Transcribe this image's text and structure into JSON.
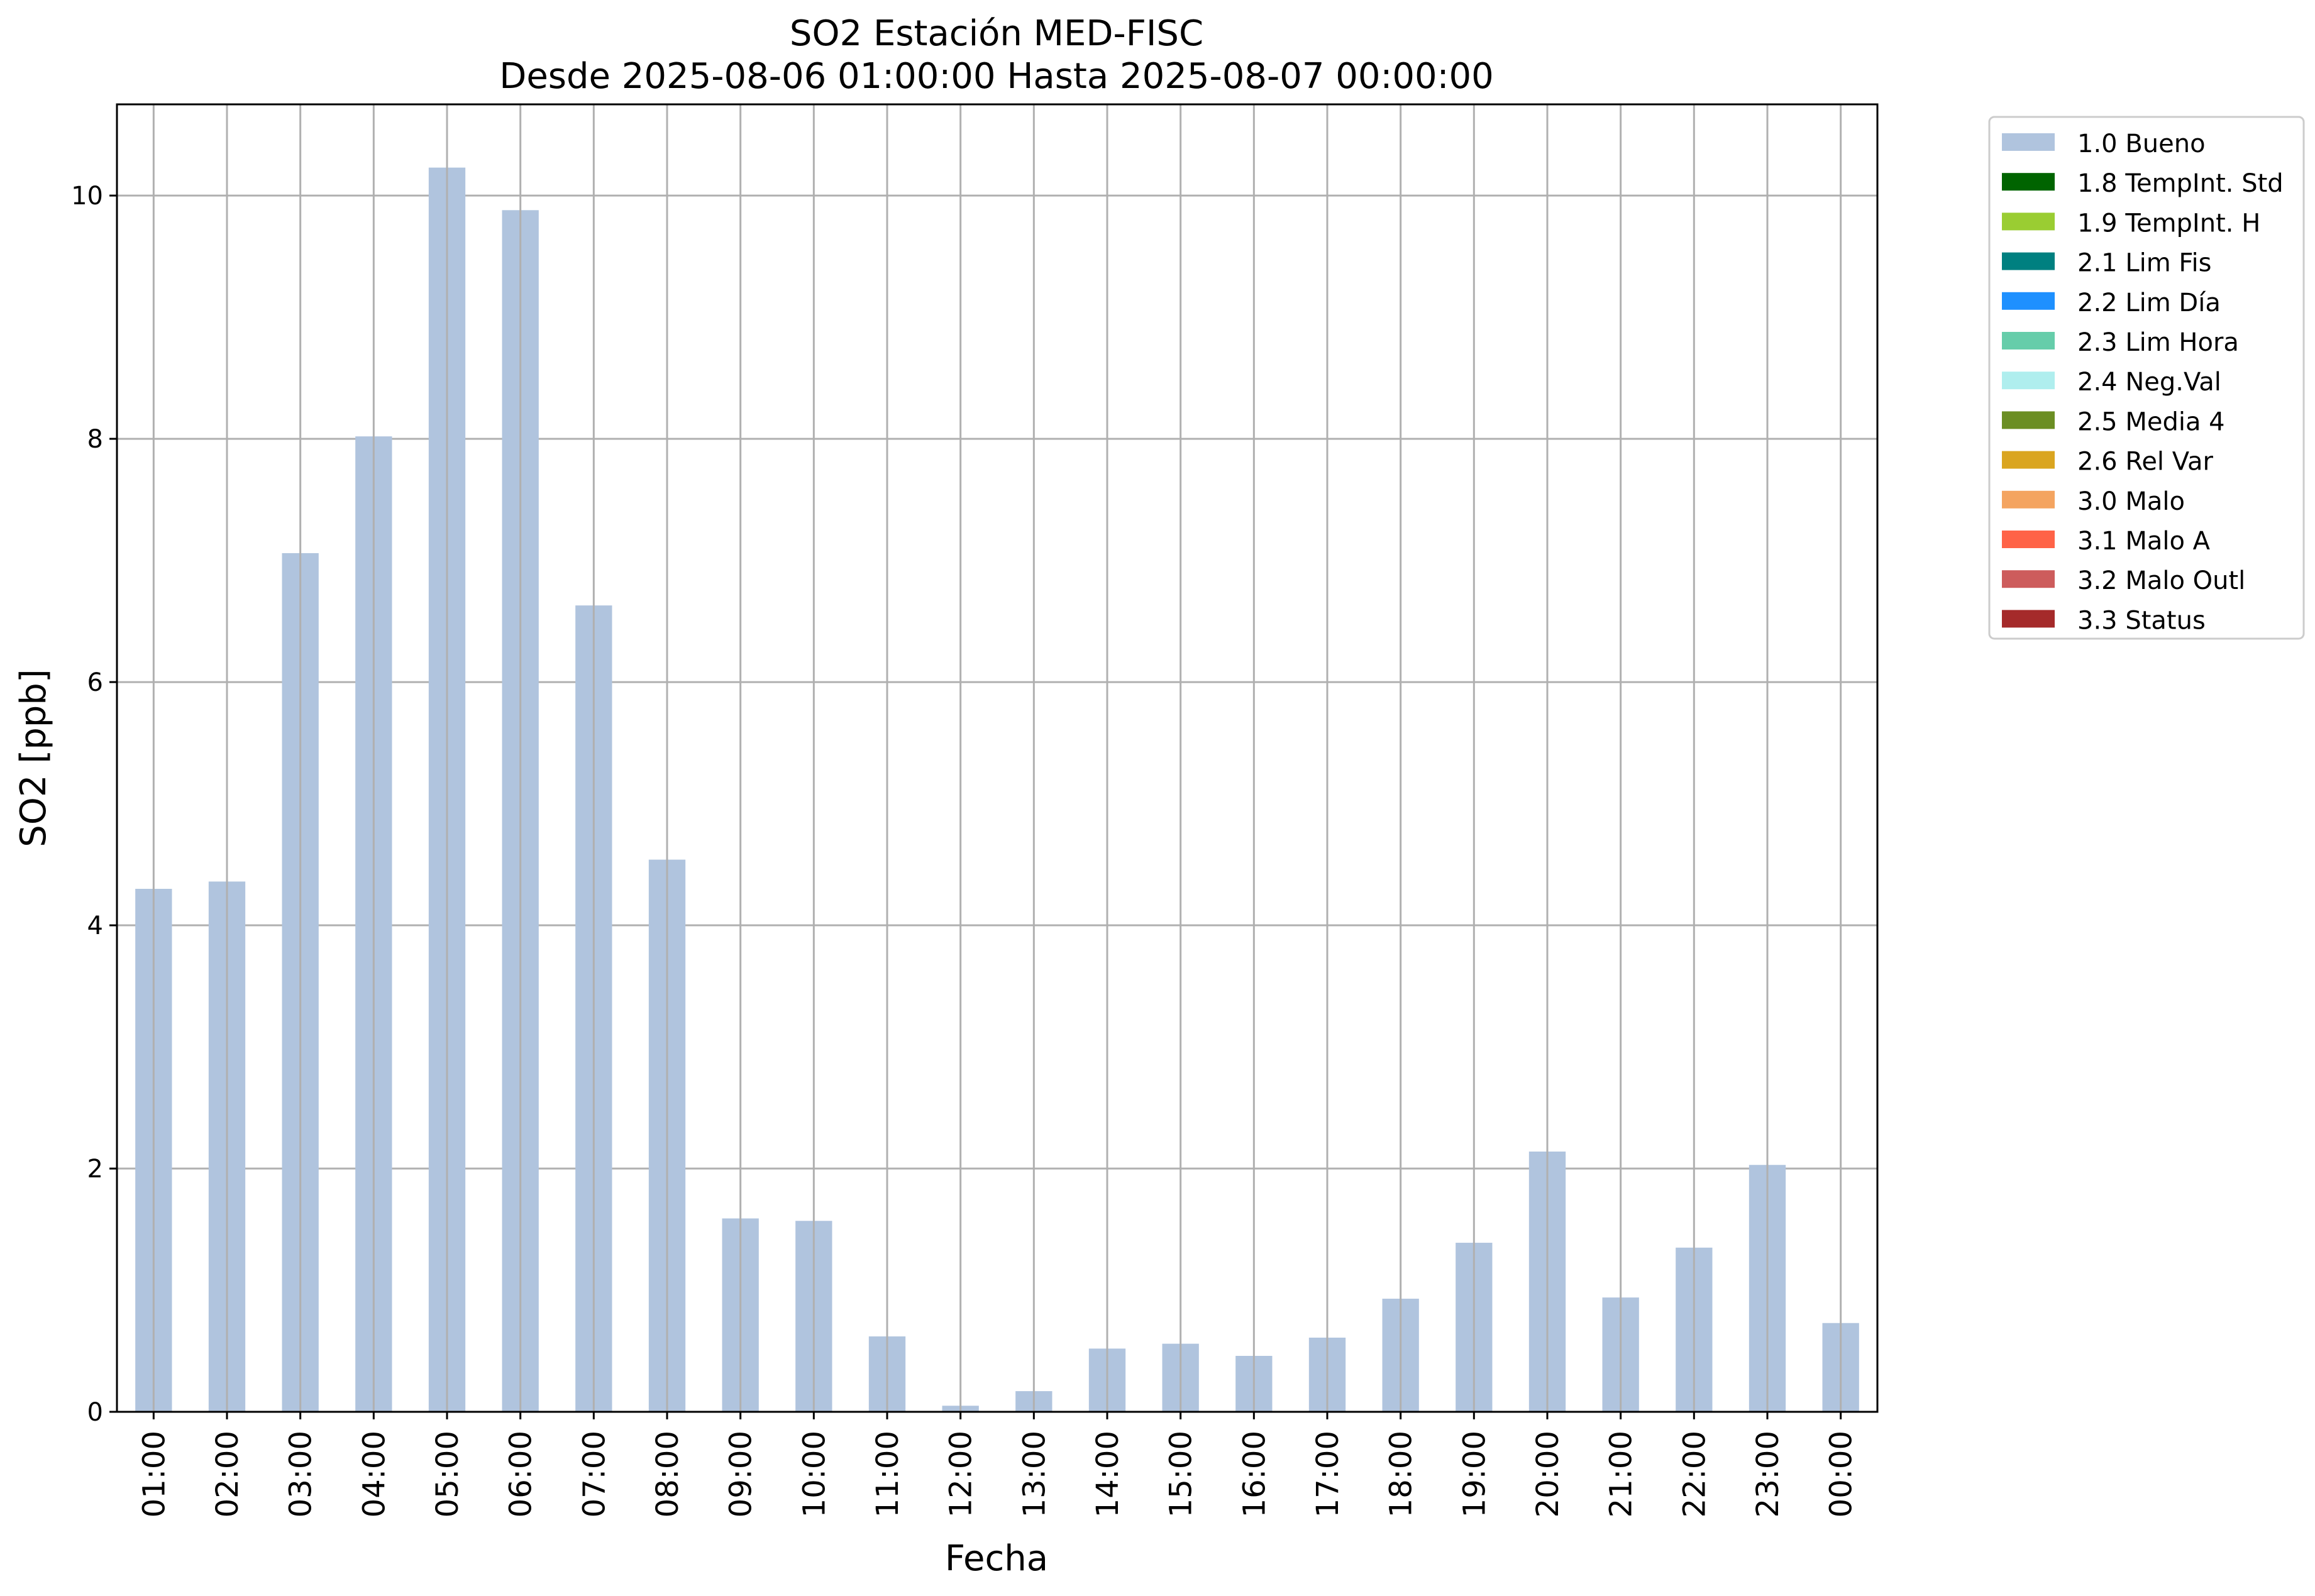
{
  "chart_data": {
    "type": "bar",
    "title": "SO2 Estación MED-FISC",
    "subtitle": "Desde 2025-08-06 01:00:00 Hasta 2025-08-07 00:00:00",
    "xlabel": "Fecha",
    "ylabel": "SO2 [ppb]",
    "ylim": [
      0,
      10.75
    ],
    "yticks": [
      0,
      2,
      4,
      6,
      8,
      10
    ],
    "grid": true,
    "legend_position": "outside-right",
    "bar_color": "#b0c4de",
    "categories": [
      "01:00",
      "02:00",
      "03:00",
      "04:00",
      "05:00",
      "06:00",
      "07:00",
      "08:00",
      "09:00",
      "10:00",
      "11:00",
      "12:00",
      "13:00",
      "14:00",
      "15:00",
      "16:00",
      "17:00",
      "18:00",
      "19:00",
      "20:00",
      "21:00",
      "22:00",
      "23:00",
      "00:00"
    ],
    "series": [
      {
        "name": "1.0 Bueno",
        "values": [
          4.3,
          4.36,
          7.06,
          8.02,
          10.23,
          9.88,
          6.63,
          4.54,
          1.59,
          1.57,
          0.62,
          0.05,
          0.17,
          0.52,
          0.56,
          0.46,
          0.61,
          0.93,
          1.39,
          2.14,
          0.94,
          1.35,
          2.03,
          0.73
        ]
      }
    ],
    "legend": [
      {
        "label": "1.0 Bueno",
        "color": "#b0c4de"
      },
      {
        "label": "1.8 TempInt. Std",
        "color": "#006400"
      },
      {
        "label": "1.9 TempInt. H",
        "color": "#9acd32"
      },
      {
        "label": "2.1 Lim Fis",
        "color": "#008080"
      },
      {
        "label": "2.2 Lim Día",
        "color": "#1e90ff"
      },
      {
        "label": "2.3 Lim Hora",
        "color": "#66cdaa"
      },
      {
        "label": "2.4 Neg.Val",
        "color": "#afeeee"
      },
      {
        "label": "2.5 Media 4",
        "color": "#6b8e23"
      },
      {
        "label": "2.6 Rel Var",
        "color": "#daa520"
      },
      {
        "label": "3.0 Malo",
        "color": "#f4a460"
      },
      {
        "label": "3.1 Malo A",
        "color": "#ff6347"
      },
      {
        "label": "3.2 Malo Outl",
        "color": "#cd5c5c"
      },
      {
        "label": "3.3 Status",
        "color": "#a52a2a"
      }
    ]
  }
}
